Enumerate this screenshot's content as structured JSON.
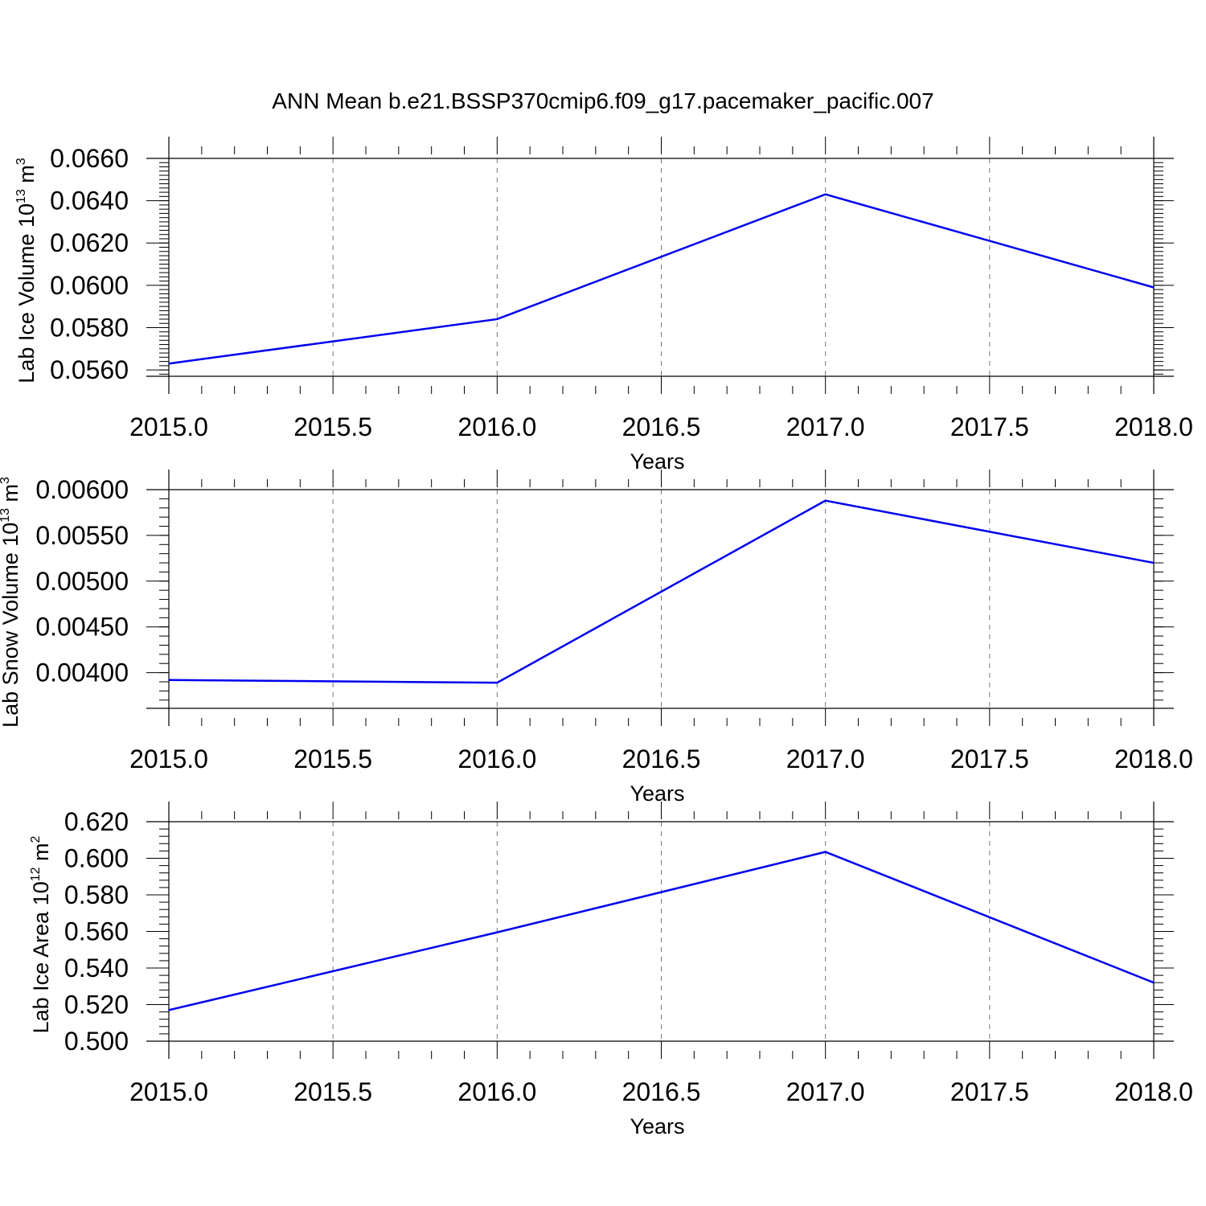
{
  "title": "ANN Mean b.e21.BSSP370cmip6.f09_g17.pacemaker_pacific.007",
  "colors": {
    "line": "#0000ee",
    "grid": "#777777",
    "axis": "#000000"
  },
  "chart_data": [
    {
      "type": "line",
      "ylabel": {
        "text": "Lab Ice Volume 10",
        "sup": "13",
        "unit": " m",
        "unit_sup": "3"
      },
      "xlabel": "Years",
      "xlim": [
        2015.0,
        2018.0
      ],
      "ylim": [
        0.0557,
        0.066
      ],
      "xticks": [
        "2015.0",
        "2015.5",
        "2016.0",
        "2016.5",
        "2017.0",
        "2017.5",
        "2018.0"
      ],
      "yticks": [
        {
          "value": 0.056,
          "label": "0.0560"
        },
        {
          "value": 0.058,
          "label": "0.0580"
        },
        {
          "value": 0.06,
          "label": "0.0600"
        },
        {
          "value": 0.062,
          "label": "0.0620"
        },
        {
          "value": 0.064,
          "label": "0.0640"
        },
        {
          "value": 0.066,
          "label": "0.0660"
        }
      ],
      "x": [
        2015,
        2016,
        2017,
        2018
      ],
      "y": [
        0.0563,
        0.0584,
        0.0643,
        0.0599
      ],
      "grid": "vertical dashed"
    },
    {
      "type": "line",
      "ylabel": {
        "text": "Lab Snow Volume 10",
        "sup": "13",
        "unit": " m",
        "unit_sup": "3"
      },
      "xlabel": "Years",
      "xlim": [
        2015.0,
        2018.0
      ],
      "ylim": [
        0.00361,
        0.006
      ],
      "xticks": [
        "2015.0",
        "2015.5",
        "2016.0",
        "2016.5",
        "2017.0",
        "2017.5",
        "2018.0"
      ],
      "yticks": [
        {
          "value": 0.004,
          "label": "0.00400"
        },
        {
          "value": 0.0045,
          "label": "0.00450"
        },
        {
          "value": 0.005,
          "label": "0.00500"
        },
        {
          "value": 0.0055,
          "label": "0.00550"
        },
        {
          "value": 0.006,
          "label": "0.00600"
        }
      ],
      "x": [
        2015,
        2016,
        2017,
        2018
      ],
      "y": [
        0.00392,
        0.00389,
        0.00588,
        0.0052
      ],
      "grid": "vertical dashed"
    },
    {
      "type": "line",
      "ylabel": {
        "text": "Lab Ice Area 10",
        "sup": "12",
        "unit": " m",
        "unit_sup": "2"
      },
      "xlabel": "Years",
      "xlim": [
        2015.0,
        2018.0
      ],
      "ylim": [
        0.5,
        0.62
      ],
      "xticks": [
        "2015.0",
        "2015.5",
        "2016.0",
        "2016.5",
        "2017.0",
        "2017.5",
        "2018.0"
      ],
      "yticks": [
        {
          "value": 0.5,
          "label": "0.500"
        },
        {
          "value": 0.52,
          "label": "0.520"
        },
        {
          "value": 0.54,
          "label": "0.540"
        },
        {
          "value": 0.56,
          "label": "0.560"
        },
        {
          "value": 0.58,
          "label": "0.580"
        },
        {
          "value": 0.6,
          "label": "0.600"
        },
        {
          "value": 0.62,
          "label": "0.620"
        }
      ],
      "x": [
        2015,
        2016,
        2017,
        2018
      ],
      "y": [
        0.517,
        0.5595,
        0.6035,
        0.532
      ],
      "grid": "vertical dashed"
    }
  ]
}
